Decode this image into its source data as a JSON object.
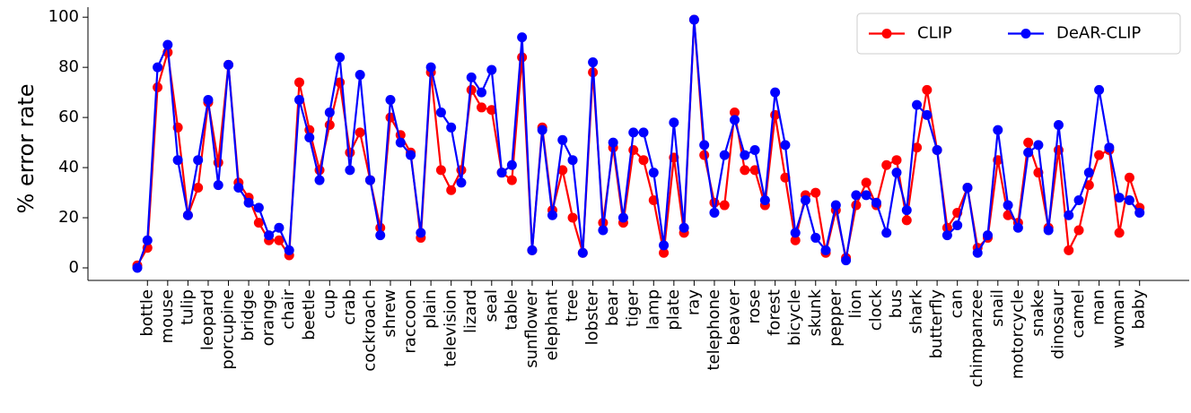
{
  "chart_data": {
    "type": "line",
    "ylabel": "% error rate",
    "categories": [
      null,
      "bottle",
      null,
      "mouse",
      null,
      "tulip",
      null,
      "leopard",
      null,
      "porcupine",
      null,
      "bridge",
      null,
      "orange",
      null,
      "chair",
      null,
      "beetle",
      null,
      "cup",
      null,
      "crab",
      null,
      "cockroach",
      null,
      "shrew",
      null,
      "raccoon",
      null,
      "plain",
      null,
      "television",
      null,
      "lizard",
      null,
      "seal",
      null,
      "table",
      null,
      "sunflower",
      null,
      "elephant",
      null,
      "tree",
      null,
      "lobster",
      null,
      "bear",
      null,
      "tiger",
      null,
      "lamp",
      null,
      "plate",
      null,
      "ray",
      null,
      "telephone",
      null,
      "beaver",
      null,
      "rose",
      null,
      "forest",
      null,
      "bicycle",
      null,
      "skunk",
      null,
      "pepper",
      null,
      "lion",
      null,
      "clock",
      null,
      "bus",
      null,
      "shark",
      null,
      "butterfly",
      null,
      "can",
      null,
      "chimpanzee",
      null,
      "snail",
      null,
      "motorcycle",
      null,
      "snake",
      null,
      "dinosaur",
      null,
      "camel",
      null,
      "man",
      null,
      "woman",
      null,
      "baby"
    ],
    "series": [
      {
        "name": "CLIP",
        "color": "#ff0000",
        "values": [
          1,
          8,
          72,
          86,
          56,
          21,
          32,
          66,
          42,
          81,
          34,
          28,
          18,
          11,
          11,
          5,
          74,
          55,
          39,
          57,
          74,
          46,
          54,
          35,
          16,
          60,
          53,
          46,
          12,
          78,
          39,
          31,
          39,
          71,
          64,
          63,
          38,
          35,
          84,
          7,
          56,
          23,
          39,
          20,
          6,
          78,
          18,
          48,
          18,
          47,
          43,
          27,
          6,
          44,
          14,
          99,
          45,
          26,
          25,
          62,
          39,
          39,
          25,
          61,
          36,
          11,
          29,
          30,
          6,
          23,
          4,
          25,
          34,
          25,
          41,
          43,
          19,
          48,
          71,
          47,
          16,
          22,
          32,
          8,
          12,
          43,
          21,
          18,
          50,
          38,
          16,
          47,
          7,
          15,
          33,
          45,
          47,
          14,
          36,
          24
        ]
      },
      {
        "name": "DeAR-CLIP",
        "color": "#0000ff",
        "values": [
          0,
          11,
          80,
          89,
          43,
          21,
          43,
          67,
          33,
          81,
          32,
          26,
          24,
          13,
          16,
          7,
          67,
          52,
          35,
          62,
          84,
          39,
          77,
          35,
          13,
          67,
          50,
          45,
          14,
          80,
          62,
          56,
          34,
          76,
          70,
          79,
          38,
          41,
          92,
          7,
          55,
          21,
          51,
          43,
          6,
          82,
          15,
          50,
          20,
          54,
          54,
          38,
          9,
          58,
          16,
          99,
          49,
          22,
          45,
          59,
          45,
          47,
          27,
          70,
          49,
          14,
          27,
          12,
          7,
          25,
          3,
          29,
          29,
          26,
          14,
          38,
          23,
          65,
          61,
          47,
          13,
          17,
          32,
          6,
          13,
          55,
          25,
          16,
          46,
          49,
          15,
          57,
          21,
          27,
          38,
          71,
          48,
          28,
          27,
          22
        ]
      }
    ],
    "ylim": [
      -5,
      104
    ],
    "yticks": [
      0,
      20,
      40,
      60,
      80,
      100
    ]
  }
}
